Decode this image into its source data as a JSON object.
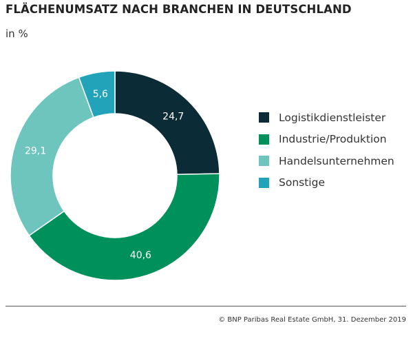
{
  "title": "FLÄCHENUMSATZ NACH BRANCHEN IN DEUTSCHLAND",
  "subtitle": "in %",
  "source": "© BNP Paribas Real Estate GmbH, 31. Dezember 2019",
  "chart_data": {
    "type": "pie",
    "donut": true,
    "categories": [
      "Logistikdienstleister",
      "Industrie/Produktion",
      "Handelsunternehmen",
      "Sonstige"
    ],
    "values": [
      24.7,
      40.6,
      29.1,
      5.6
    ],
    "labels": [
      "24,7",
      "40,6",
      "29,1",
      "5,6"
    ],
    "colors": [
      "#0b2b36",
      "#00905b",
      "#6dc5be",
      "#22a3b9"
    ],
    "legend_placement": "right"
  }
}
